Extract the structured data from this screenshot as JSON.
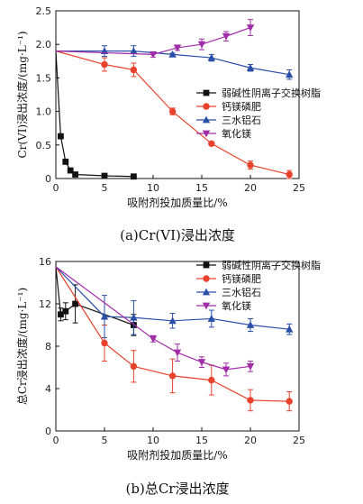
{
  "chart_data": [
    {
      "type": "line",
      "caption": "(a)Cr(VI)浸出浓度",
      "xlabel": "吸附剂投加质量比/%",
      "ylabel": "Cr(VI)浸出浓度/(mg·L⁻¹)",
      "xlim": [
        0,
        25
      ],
      "ylim": [
        0,
        2.5
      ],
      "xticks": [
        "0",
        "5",
        "10",
        "15",
        "20",
        "25"
      ],
      "yticks": [
        "0",
        "0.5",
        "1.0",
        "1.5",
        "2.0",
        "2.5"
      ],
      "legend_position": "right-middle",
      "series": [
        {
          "name": "弱碱性阴离子交换树脂",
          "color": "#111111",
          "marker": "square",
          "x": [
            0,
            0.5,
            1,
            1.5,
            2,
            5,
            8
          ],
          "y": [
            1.9,
            0.63,
            0.25,
            0.12,
            0.06,
            0.04,
            0.03
          ],
          "err": [
            0,
            0.02,
            0.02,
            0.01,
            0.01,
            0.01,
            0.01
          ]
        },
        {
          "name": "钙镁磷肥",
          "color": "#e8412c",
          "marker": "circle",
          "x": [
            0,
            5,
            8,
            12,
            16,
            20,
            24
          ],
          "y": [
            1.9,
            1.7,
            1.62,
            1.0,
            0.52,
            0.2,
            0.06
          ],
          "err": [
            0,
            0.1,
            0.1,
            0.05,
            0.03,
            0.06,
            0.06
          ]
        },
        {
          "name": "三水铝石",
          "color": "#2a4fa8",
          "marker": "triangle",
          "x": [
            0,
            5,
            8,
            12,
            16,
            20,
            24
          ],
          "y": [
            1.9,
            1.9,
            1.9,
            1.85,
            1.8,
            1.65,
            1.55
          ],
          "err": [
            0,
            0.08,
            0.08,
            0.02,
            0.05,
            0.05,
            0.07
          ]
        },
        {
          "name": "氧化镁",
          "color": "#a12ca8",
          "marker": "triangle-down",
          "x": [
            0,
            10,
            12.5,
            15,
            17.5,
            20
          ],
          "y": [
            1.9,
            1.85,
            1.95,
            2.0,
            2.12,
            2.25
          ],
          "err": [
            0,
            0.04,
            0.04,
            0.08,
            0.07,
            0.12
          ]
        }
      ]
    },
    {
      "type": "line",
      "caption": "(b)总Cr浸出浓度",
      "xlabel": "吸附剂投加质量比/%",
      "ylabel": "总Cr浸出浓度/(mg·L⁻¹)",
      "xlim": [
        0,
        25
      ],
      "ylim": [
        0,
        16
      ],
      "xticks": [
        "0",
        "5",
        "10",
        "15",
        "20",
        "25"
      ],
      "yticks": [
        "0",
        "4",
        "8",
        "12",
        "16"
      ],
      "legend_position": "top-right",
      "series": [
        {
          "name": "弱碱性阴离子交换树脂",
          "color": "#111111",
          "marker": "square",
          "x": [
            0,
            0.5,
            1,
            2,
            8
          ],
          "y": [
            15.5,
            11.0,
            11.3,
            12.0,
            10.0
          ],
          "err": [
            0,
            0.6,
            0.8,
            1.8,
            1.0
          ]
        },
        {
          "name": "钙镁磷肥",
          "color": "#e8412c",
          "marker": "circle",
          "x": [
            0,
            5,
            8,
            12,
            16,
            20,
            24
          ],
          "y": [
            15.5,
            8.3,
            6.1,
            5.2,
            4.8,
            2.9,
            2.8
          ],
          "err": [
            0,
            1.7,
            1.5,
            1.6,
            1.4,
            1.0,
            0.9
          ]
        },
        {
          "name": "三水铝石",
          "color": "#2a4fa8",
          "marker": "triangle",
          "x": [
            0,
            5,
            8,
            12,
            16,
            20,
            24
          ],
          "y": [
            15.5,
            10.8,
            10.7,
            10.4,
            10.6,
            10.0,
            9.6
          ],
          "err": [
            0,
            2.0,
            1.6,
            0.7,
            0.8,
            0.6,
            0.5
          ]
        },
        {
          "name": "氧化镁",
          "color": "#a12ca8",
          "marker": "triangle-down",
          "x": [
            0,
            10,
            12.5,
            15,
            17.5,
            20
          ],
          "y": [
            15.5,
            8.7,
            7.4,
            6.5,
            5.8,
            6.1
          ],
          "err": [
            0,
            0.3,
            0.8,
            0.5,
            0.6,
            0.5
          ]
        }
      ]
    }
  ]
}
